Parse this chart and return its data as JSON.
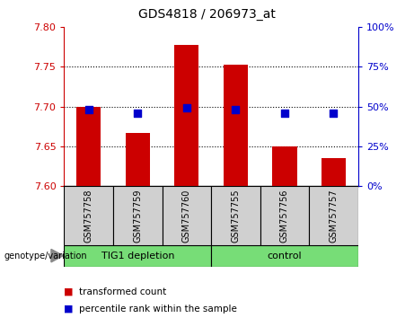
{
  "title": "GDS4818 / 206973_at",
  "samples": [
    "GSM757758",
    "GSM757759",
    "GSM757760",
    "GSM757755",
    "GSM757756",
    "GSM757757"
  ],
  "bar_values": [
    7.7,
    7.667,
    7.778,
    7.753,
    7.65,
    7.635
  ],
  "dot_values": [
    48,
    46,
    49,
    48,
    46,
    46
  ],
  "ylim_left": [
    7.6,
    7.8
  ],
  "ylim_right": [
    0,
    100
  ],
  "yticks_left": [
    7.6,
    7.65,
    7.7,
    7.75,
    7.8
  ],
  "yticks_right": [
    0,
    25,
    50,
    75,
    100
  ],
  "grid_lines": [
    7.65,
    7.7,
    7.75
  ],
  "bar_color": "#cc0000",
  "dot_color": "#0000cc",
  "green_color": "#77dd77",
  "gray_color": "#d0d0d0",
  "group_labels": [
    "TIG1 depletion",
    "control"
  ],
  "group_split": 3,
  "legend_items": [
    "transformed count",
    "percentile rank within the sample"
  ],
  "genotype_label": "genotype/variation",
  "bar_width": 0.5,
  "bar_bottom": 7.6,
  "dot_size": 40,
  "title_fontsize": 10,
  "tick_fontsize": 8,
  "label_fontsize": 8
}
